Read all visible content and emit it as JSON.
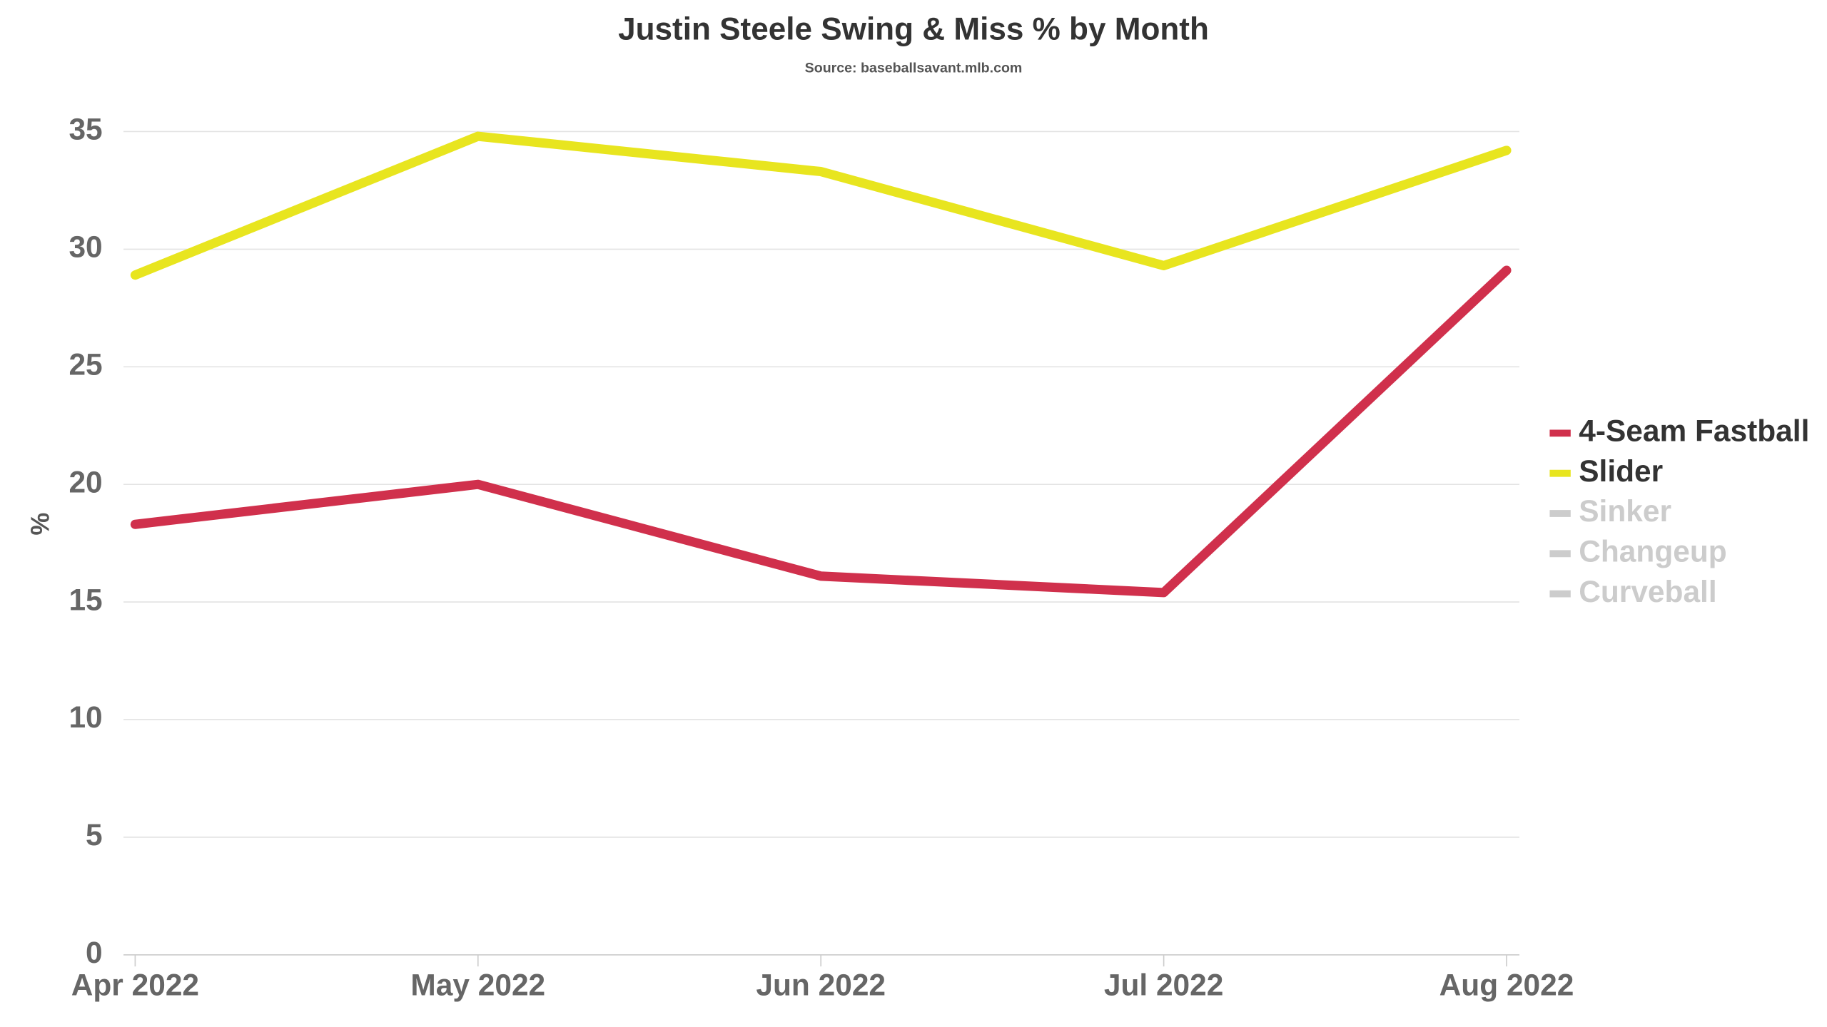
{
  "chart_data": {
    "type": "line",
    "title": "Justin Steele Swing & Miss % by Month",
    "subtitle": "Source: baseballsavant.mlb.com",
    "y_label": "%",
    "x": [
      "Apr 2022",
      "May 2022",
      "Jun 2022",
      "Jul 2022",
      "Aug 2022"
    ],
    "series": [
      {
        "name": "4-Seam Fastball",
        "color": "#d0304c",
        "visible": true,
        "values": [
          18.3,
          20.0,
          16.1,
          15.4,
          29.1
        ]
      },
      {
        "name": "Slider",
        "color": "#e8e51f",
        "visible": true,
        "values": [
          28.9,
          34.8,
          33.3,
          29.3,
          34.2
        ]
      },
      {
        "name": "Sinker",
        "color": "#cccccc",
        "visible": false,
        "values": [
          null,
          null,
          null,
          null,
          null
        ]
      },
      {
        "name": "Changeup",
        "color": "#cccccc",
        "visible": false,
        "values": [
          null,
          null,
          null,
          null,
          null
        ]
      },
      {
        "name": "Curveball",
        "color": "#cccccc",
        "visible": false,
        "values": [
          null,
          null,
          null,
          null,
          null
        ]
      }
    ],
    "ylim": [
      0,
      35
    ],
    "yticks": [
      0,
      5,
      10,
      15,
      20,
      25,
      30,
      35
    ],
    "grid": true,
    "legend": "right"
  }
}
